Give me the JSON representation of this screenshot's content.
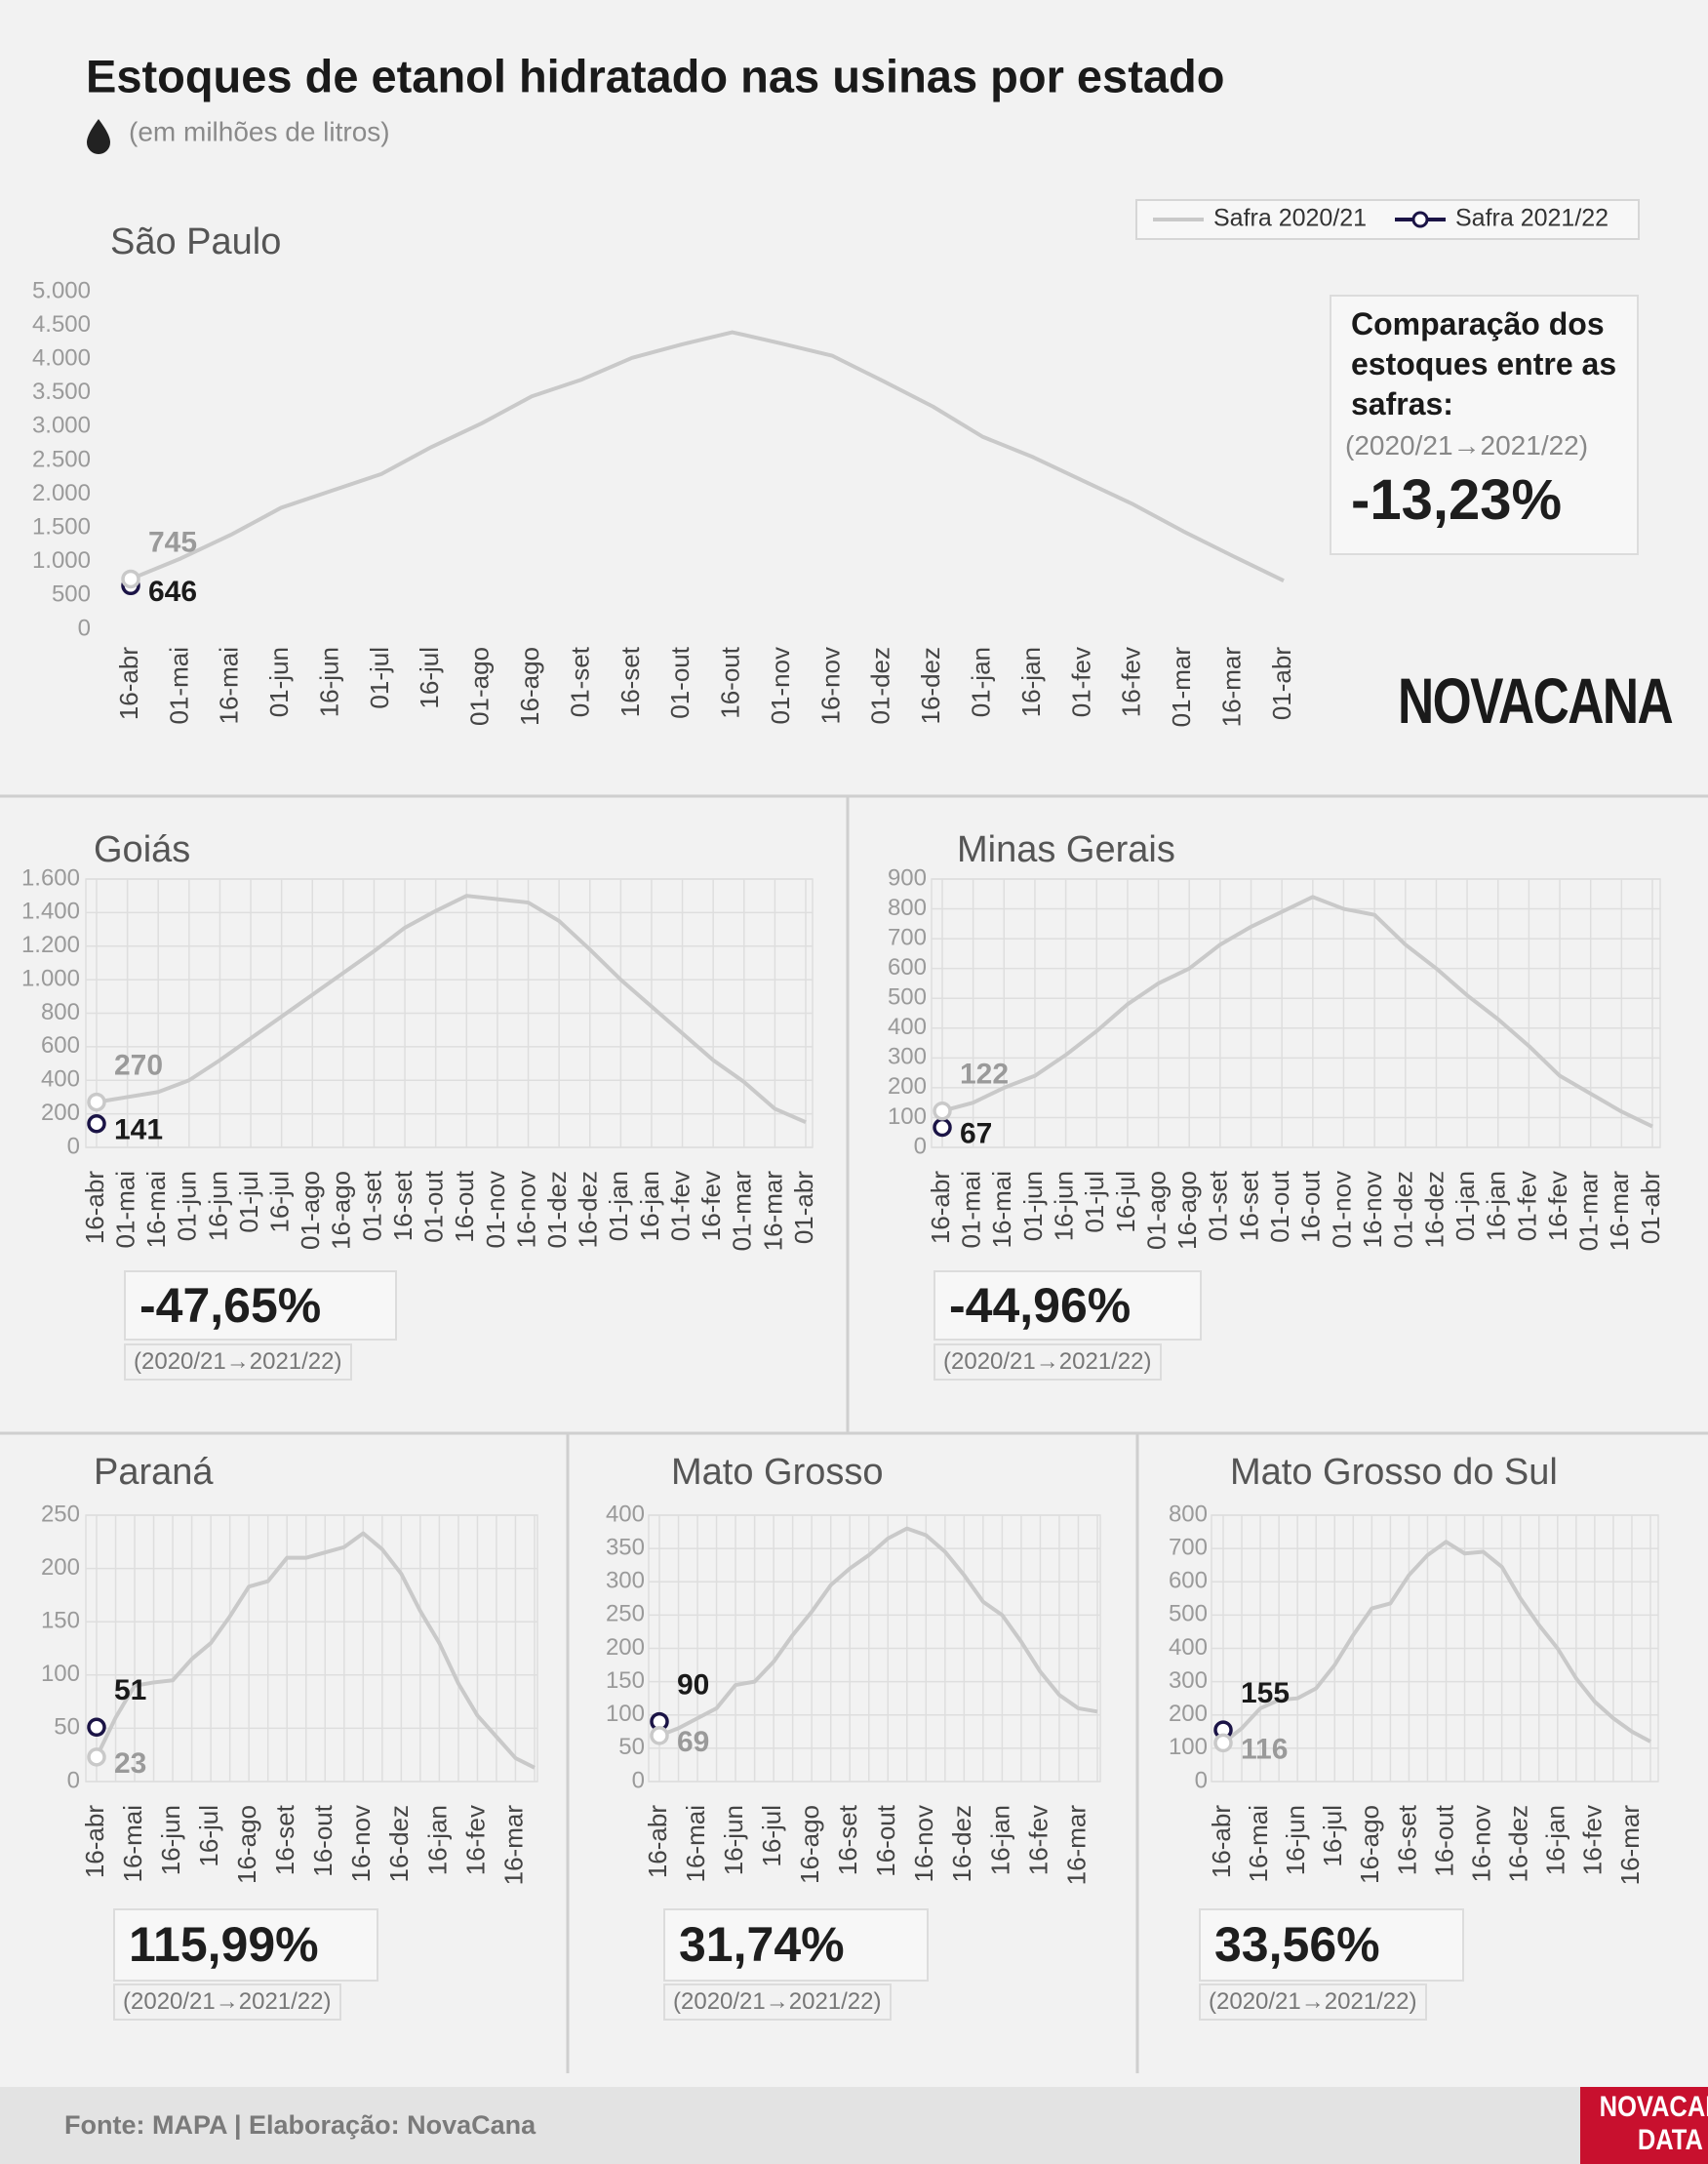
{
  "title": "Estoques de etanol hidratado nas usinas por estado",
  "subtitle": "(em milhões de litros)",
  "source": "Fonte: MAPA  | Elaboração: NovaCana",
  "logo": "NOVACANA",
  "footer_logo": "NOVACANA DATA",
  "chart_data": [
    {
      "type": "line",
      "title": "São Paulo",
      "categories": [
        "16-abr",
        "01-mai",
        "16-mai",
        "01-jun",
        "16-jun",
        "01-jul",
        "16-jul",
        "01-ago",
        "16-ago",
        "01-set",
        "16-set",
        "01-out",
        "16-out",
        "01-nov",
        "16-nov",
        "01-dez",
        "16-dez",
        "01-jan",
        "16-jan",
        "01-fev",
        "16-fev",
        "01-mar",
        "16-mar",
        "01-abr"
      ],
      "series": [
        {
          "name": "Safra 2020/21",
          "color": "#c9c9c9",
          "values": [
            745,
            1050,
            1400,
            1800,
            2050,
            2300,
            2700,
            3050,
            3450,
            3700,
            4020,
            4220,
            4400,
            4230,
            4050,
            3680,
            3300,
            2850,
            2550,
            2200,
            1850,
            1450,
            1080,
            720
          ]
        },
        {
          "name": "Safra 2021/22",
          "color": "#1b1446",
          "values": [
            646,
            null,
            null,
            null,
            null,
            null,
            null,
            null,
            null,
            null,
            null,
            null,
            null,
            null,
            null,
            null,
            null,
            null,
            null,
            null,
            null,
            null,
            null,
            null
          ]
        }
      ],
      "ylim": [
        0,
        5000
      ],
      "yticks": [
        0,
        500,
        {
          "value": 1000,
          "label": "1.000"
        },
        {
          "value": 1500,
          "label": "1.500"
        },
        {
          "value": 2000,
          "label": "2.000"
        },
        {
          "value": 2500,
          "label": "2.500"
        },
        {
          "value": 3000,
          "label": "3.000"
        },
        {
          "value": 3500,
          "label": "3.500"
        },
        {
          "value": 4000,
          "label": "4.000"
        },
        {
          "value": 4500,
          "label": "4.500"
        },
        {
          "value": 5000,
          "label": "5.000"
        }
      ],
      "grid": false,
      "legend": "top-right",
      "comparison": {
        "heading": "Comparação dos estoques entre as safras:",
        "period": "(2020/21→2021/22)",
        "change": -13.23,
        "change_label": "-13,23%"
      }
    },
    {
      "type": "line",
      "title": "Goiás",
      "categories": [
        "16-abr",
        "01-mai",
        "16-mai",
        "01-jun",
        "16-jun",
        "01-jul",
        "16-jul",
        "01-ago",
        "16-ago",
        "01-set",
        "16-set",
        "01-out",
        "16-out",
        "01-nov",
        "16-nov",
        "01-dez",
        "16-dez",
        "01-jan",
        "16-jan",
        "01-fev",
        "16-fev",
        "01-mar",
        "16-mar",
        "01-abr"
      ],
      "series": [
        {
          "name": "Safra 2020/21",
          "color": "#c9c9c9",
          "values": [
            270,
            300,
            330,
            400,
            520,
            650,
            780,
            910,
            1040,
            1170,
            1310,
            1410,
            1500,
            1480,
            1460,
            1350,
            1180,
            1000,
            840,
            680,
            520,
            390,
            230,
            150
          ]
        },
        {
          "name": "Safra 2021/22",
          "color": "#1b1446",
          "values": [
            141,
            null,
            null,
            null,
            null,
            null,
            null,
            null,
            null,
            null,
            null,
            null,
            null,
            null,
            null,
            null,
            null,
            null,
            null,
            null,
            null,
            null,
            null,
            null
          ]
        }
      ],
      "ylim": [
        0,
        1600
      ],
      "yticks": [
        0,
        200,
        400,
        600,
        800,
        {
          "value": 1000,
          "label": "1.000"
        },
        {
          "value": 1200,
          "label": "1.200"
        },
        {
          "value": 1400,
          "label": "1.400"
        },
        {
          "value": 1600,
          "label": "1.600"
        }
      ],
      "grid": true,
      "comparison": {
        "period": "(2020/21→2021/22)",
        "change": -47.65,
        "change_label": "-47,65%"
      }
    },
    {
      "type": "line",
      "title": "Minas Gerais",
      "categories": [
        "16-abr",
        "01-mai",
        "16-mai",
        "01-jun",
        "16-jun",
        "01-jul",
        "16-jul",
        "01-ago",
        "16-ago",
        "01-set",
        "16-set",
        "01-out",
        "16-out",
        "01-nov",
        "16-nov",
        "01-dez",
        "16-dez",
        "01-jan",
        "16-jan",
        "01-fev",
        "16-fev",
        "01-mar",
        "16-mar",
        "01-abr"
      ],
      "series": [
        {
          "name": "Safra 2020/21",
          "color": "#c9c9c9",
          "values": [
            122,
            150,
            200,
            240,
            310,
            390,
            480,
            550,
            600,
            680,
            740,
            790,
            840,
            800,
            780,
            680,
            600,
            510,
            430,
            340,
            240,
            180,
            120,
            70
          ]
        },
        {
          "name": "Safra 2021/22",
          "color": "#1b1446",
          "values": [
            67,
            null,
            null,
            null,
            null,
            null,
            null,
            null,
            null,
            null,
            null,
            null,
            null,
            null,
            null,
            null,
            null,
            null,
            null,
            null,
            null,
            null,
            null,
            null
          ]
        }
      ],
      "ylim": [
        0,
        900
      ],
      "yticks": [
        0,
        100,
        200,
        300,
        400,
        500,
        600,
        700,
        800,
        900
      ],
      "grid": true,
      "comparison": {
        "period": "(2020/21→2021/22)",
        "change": -44.96,
        "change_label": "-44,96%"
      }
    },
    {
      "type": "line",
      "title": "Paraná",
      "categories": [
        "16-abr",
        null,
        "16-mai",
        null,
        "16-jun",
        null,
        "16-jul",
        null,
        "16-ago",
        null,
        "16-set",
        null,
        "16-out",
        null,
        "16-nov",
        null,
        "16-dez",
        null,
        "16-jan",
        null,
        "16-fev",
        null,
        "16-mar",
        null
      ],
      "series": [
        {
          "name": "Safra 2020/21",
          "color": "#c9c9c9",
          "values": [
            23,
            60,
            90,
            93,
            95,
            115,
            130,
            155,
            183,
            188,
            210,
            210,
            215,
            220,
            233,
            218,
            195,
            160,
            130,
            92,
            62,
            42,
            22,
            13
          ]
        },
        {
          "name": "Safra 2021/22",
          "color": "#1b1446",
          "values": [
            51,
            null,
            null,
            null,
            null,
            null,
            null,
            null,
            null,
            null,
            null,
            null,
            null,
            null,
            null,
            null,
            null,
            null,
            null,
            null,
            null,
            null,
            null,
            null
          ]
        }
      ],
      "ylim": [
        0,
        250
      ],
      "yticks": [
        0,
        50,
        100,
        150,
        200,
        250
      ],
      "grid": true,
      "comparison": {
        "period": "(2020/21→2021/22)",
        "change": 115.99,
        "change_label": "115,99%"
      }
    },
    {
      "type": "line",
      "title": "Mato Grosso",
      "categories": [
        "16-abr",
        null,
        "16-mai",
        null,
        "16-jun",
        null,
        "16-jul",
        null,
        "16-ago",
        null,
        "16-set",
        null,
        "16-out",
        null,
        "16-nov",
        null,
        "16-dez",
        null,
        "16-jan",
        null,
        "16-fev",
        null,
        "16-mar",
        null
      ],
      "series": [
        {
          "name": "Safra 2020/21",
          "color": "#c9c9c9",
          "values": [
            69,
            80,
            95,
            110,
            145,
            150,
            180,
            220,
            255,
            295,
            320,
            340,
            365,
            380,
            370,
            345,
            310,
            270,
            250,
            210,
            165,
            130,
            110,
            105
          ]
        },
        {
          "name": "Safra 2021/22",
          "color": "#1b1446",
          "values": [
            90,
            null,
            null,
            null,
            null,
            null,
            null,
            null,
            null,
            null,
            null,
            null,
            null,
            null,
            null,
            null,
            null,
            null,
            null,
            null,
            null,
            null,
            null,
            null
          ]
        }
      ],
      "ylim": [
        0,
        400
      ],
      "yticks": [
        0,
        50,
        100,
        150,
        200,
        250,
        300,
        350,
        400
      ],
      "grid": true,
      "comparison": {
        "period": "(2020/21→2021/22)",
        "change": 31.74,
        "change_label": "31,74%"
      }
    },
    {
      "type": "line",
      "title": "Mato Grosso do Sul",
      "categories": [
        "16-abr",
        null,
        "16-mai",
        null,
        "16-jun",
        null,
        "16-jul",
        null,
        "16-ago",
        null,
        "16-set",
        null,
        "16-out",
        null,
        "16-nov",
        null,
        "16-dez",
        null,
        "16-jan",
        null,
        "16-fev",
        null,
        "16-mar",
        null
      ],
      "series": [
        {
          "name": "Safra 2020/21",
          "color": "#c9c9c9",
          "values": [
            116,
            160,
            220,
            245,
            250,
            280,
            350,
            440,
            520,
            535,
            620,
            680,
            720,
            685,
            690,
            645,
            550,
            470,
            400,
            310,
            240,
            190,
            150,
            120
          ]
        },
        {
          "name": "Safra 2021/22",
          "color": "#1b1446",
          "values": [
            155,
            null,
            null,
            null,
            null,
            null,
            null,
            null,
            null,
            null,
            null,
            null,
            null,
            null,
            null,
            null,
            null,
            null,
            null,
            null,
            null,
            null,
            null,
            null
          ]
        }
      ],
      "ylim": [
        0,
        800
      ],
      "yticks": [
        0,
        100,
        200,
        300,
        400,
        500,
        600,
        700,
        800
      ],
      "grid": true,
      "comparison": {
        "period": "(2020/21→2021/22)",
        "change": 33.56,
        "change_label": "33,56%"
      }
    }
  ]
}
